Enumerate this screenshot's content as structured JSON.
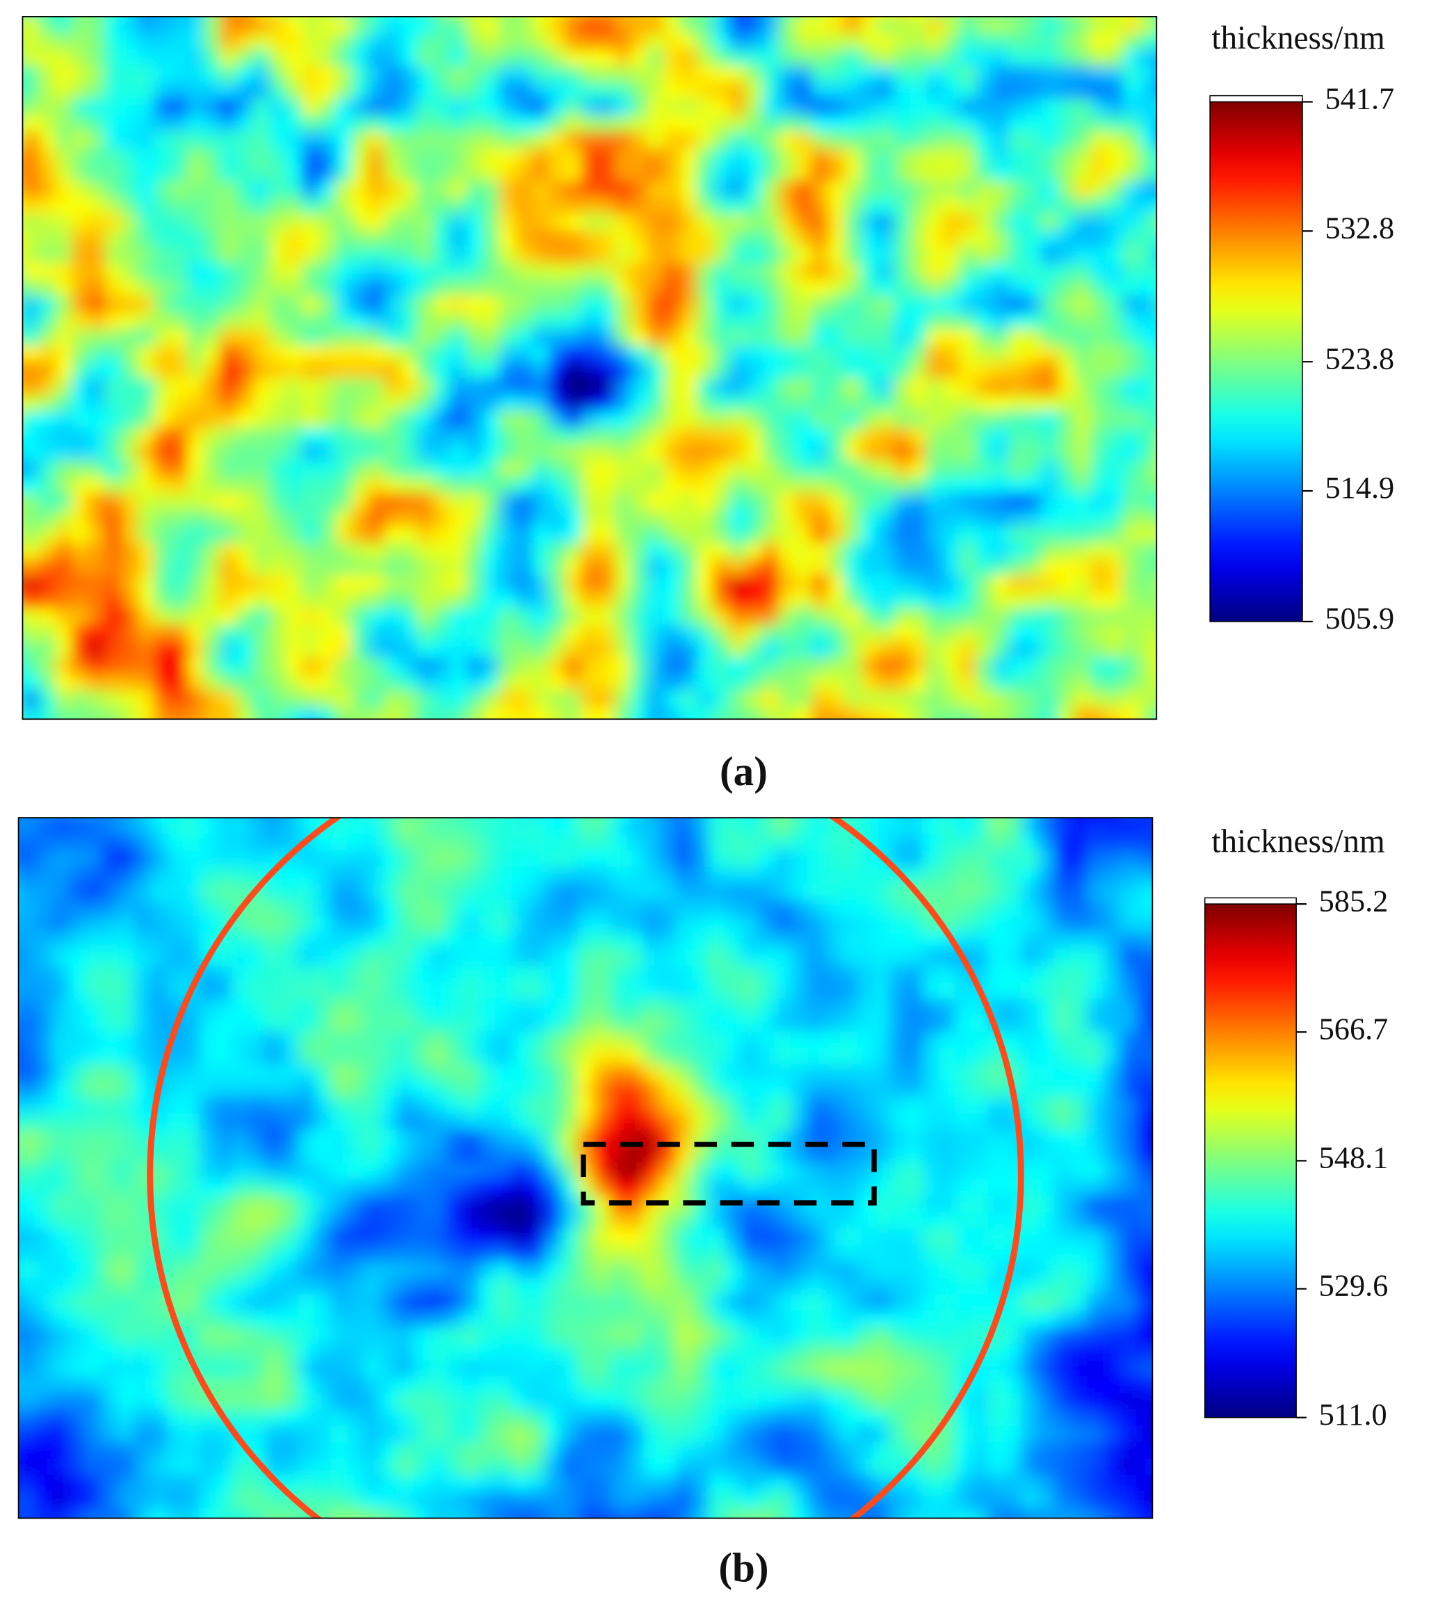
{
  "chart_data": [
    {
      "type": "heatmap",
      "colorbar_label": "thickness/nm",
      "caption": "(a)",
      "colormap": "jet",
      "clim": [
        505.9,
        541.7
      ],
      "cticks": [
        505.9,
        514.9,
        523.8,
        532.8,
        541.7
      ]
    },
    {
      "type": "heatmap",
      "colorbar_label": "thickness/nm",
      "caption": "(b)",
      "colormap": "jet",
      "clim": [
        511,
        585.2
      ],
      "cticks": [
        {
          "value": 511,
          "label": "511.0"
        },
        529.6,
        548.1,
        566.7,
        585.2
      ]
    }
  ]
}
